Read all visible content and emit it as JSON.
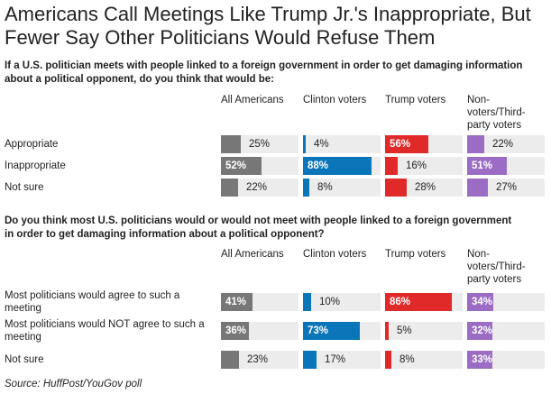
{
  "title_line1": "Americans Call Meetings Like Trump Jr.'s Inappropriate, But",
  "title_line2": "Fewer Say Other Politicians Would Refuse Them",
  "source": "Source: HuffPost/YouGov poll",
  "colors": {
    "All Americans": "#777777",
    "Clinton voters": "#0a75b8",
    "Trump voters": "#e02a2a",
    "Non-voters/Third-party voters": "#9a6cc4",
    "track": "#ececec"
  },
  "chart_data": [
    {
      "type": "bar",
      "question_line1": "If a U.S. politician meets with people linked to a foreign government in order to get damaging information",
      "question_line2": "about a political opponent, do you think that would be:",
      "groups": [
        "All Americans",
        "Clinton voters",
        "Trump voters",
        "Non-voters/Third-party voters"
      ],
      "group_labels": [
        [
          "All Americans"
        ],
        [
          "Clinton voters"
        ],
        [
          "Trump voters"
        ],
        [
          "Non-",
          "voters/Third-",
          "party voters"
        ]
      ],
      "categories": [
        {
          "label": [
            "Appropriate"
          ],
          "values": [
            25,
            4,
            56,
            22
          ]
        },
        {
          "label": [
            "Inappropriate"
          ],
          "values": [
            52,
            88,
            16,
            51
          ]
        },
        {
          "label": [
            "Not sure"
          ],
          "values": [
            22,
            8,
            28,
            27
          ]
        }
      ],
      "value_suffix": "%",
      "ylim": [
        0,
        100
      ]
    },
    {
      "type": "bar",
      "question_line1": "Do you think most U.S. politicians would or would not meet with people linked to a foreign government",
      "question_line2": "in order to get damaging information about a political opponent?",
      "groups": [
        "All Americans",
        "Clinton voters",
        "Trump voters",
        "Non-voters/Third-party voters"
      ],
      "group_labels": [
        [
          "All Americans"
        ],
        [
          "Clinton voters"
        ],
        [
          "Trump voters"
        ],
        [
          "Non-",
          "voters/Third-",
          "party voters"
        ]
      ],
      "categories": [
        {
          "label": [
            "Most politicians would agree to such a",
            "meeting"
          ],
          "values": [
            41,
            10,
            86,
            34
          ]
        },
        {
          "label": [
            "Most politicians would NOT agree to such a",
            "meeting"
          ],
          "values": [
            36,
            73,
            5,
            32
          ]
        },
        {
          "label": [
            "Not sure"
          ],
          "values": [
            23,
            17,
            8,
            33
          ]
        }
      ],
      "value_suffix": "%",
      "ylim": [
        0,
        100
      ]
    }
  ]
}
